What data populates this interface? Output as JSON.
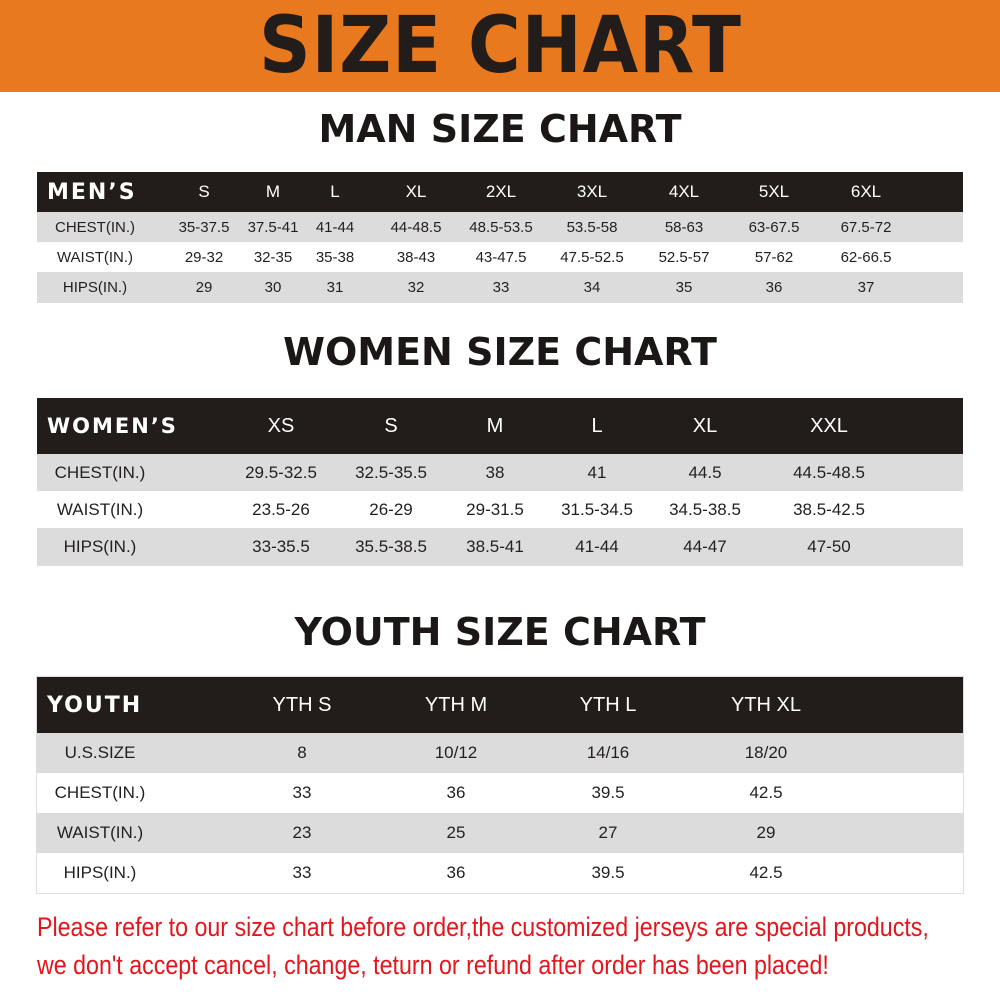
{
  "banner_title": "SIZE CHART",
  "men": {
    "title": "MAN SIZE CHART",
    "header_label": "MEN’S",
    "sizes": [
      "S",
      "M",
      "L",
      "XL",
      "2XL",
      "3XL",
      "4XL",
      "5XL",
      "6XL"
    ],
    "rows": [
      {
        "label": "CHEST(IN.)",
        "values": [
          "35-37.5",
          "37.5-41",
          "41-44",
          "44-48.5",
          "48.5-53.5",
          "53.5-58",
          "58-63",
          "63-67.5",
          "67.5-72"
        ]
      },
      {
        "label": "WAIST(IN.)",
        "values": [
          "29-32",
          "32-35",
          "35-38",
          "38-43",
          "43-47.5",
          "47.5-52.5",
          "52.5-57",
          "57-62",
          "62-66.5"
        ]
      },
      {
        "label": "HIPS(IN.)",
        "values": [
          "29",
          "30",
          "31",
          "32",
          "33",
          "34",
          "35",
          "36",
          "37"
        ]
      }
    ]
  },
  "women": {
    "title": "WOMEN SIZE CHART",
    "header_label": "WOMEN’S",
    "sizes": [
      "XS",
      "S",
      "M",
      "L",
      "XL",
      "XXL"
    ],
    "rows": [
      {
        "label": "CHEST(IN.)",
        "values": [
          "29.5-32.5",
          "32.5-35.5",
          "38",
          "41",
          "44.5",
          "44.5-48.5"
        ]
      },
      {
        "label": "WAIST(IN.)",
        "values": [
          "23.5-26",
          "26-29",
          "29-31.5",
          "31.5-34.5",
          "34.5-38.5",
          "38.5-42.5"
        ]
      },
      {
        "label": "HIPS(IN.)",
        "values": [
          "33-35.5",
          "35.5-38.5",
          "38.5-41",
          "41-44",
          "44-47",
          "47-50"
        ]
      }
    ]
  },
  "youth": {
    "title": "YOUTH SIZE CHART",
    "header_label": "YOUTH",
    "sizes": [
      "YTH S",
      "YTH M",
      "YTH L",
      "YTH XL"
    ],
    "rows": [
      {
        "label": "U.S.SIZE",
        "values": [
          "8",
          "10/12",
          "14/16",
          "18/20"
        ]
      },
      {
        "label": "CHEST(IN.)",
        "values": [
          "33",
          "36",
          "39.5",
          "42.5"
        ]
      },
      {
        "label": "WAIST(IN.)",
        "values": [
          "23",
          "25",
          "27",
          "29"
        ]
      },
      {
        "label": "HIPS(IN.)",
        "values": [
          "33",
          "36",
          "39.5",
          "42.5"
        ]
      }
    ]
  },
  "notice": {
    "line1": "Please refer to our size chart before order,the customized jerseys are special products,",
    "line2": "we don't accept cancel, change, teturn or refund after order has been placed!"
  },
  "colors": {
    "banner": "#e8791e",
    "header": "#221d1a",
    "row_gray": "#dcdcdc",
    "notice": "#e3161d"
  }
}
